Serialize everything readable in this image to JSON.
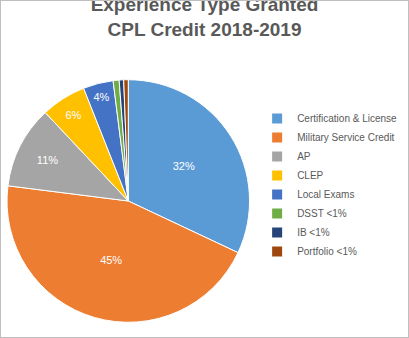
{
  "chart_data": {
    "type": "pie",
    "title": "Experience Type Granted\nCPL Credit 2018-2019",
    "categories": [
      "Certification & License",
      "Military Service Credit",
      "AP",
      "CLEP",
      "Local Exams",
      "DSST <1%",
      "IB <1%",
      "Portfolio <1%"
    ],
    "values": [
      32,
      45,
      11,
      6,
      4,
      0.8,
      0.6,
      0.6
    ],
    "value_labels": [
      "32%",
      "45%",
      "11%",
      "6%",
      "4%",
      null,
      null,
      null
    ],
    "colors": [
      "#5b9bd5",
      "#ed7d31",
      "#a5a5a5",
      "#ffc000",
      "#4472c4",
      "#70ad47",
      "#264478",
      "#9e480e"
    ],
    "data_labels": true,
    "legend": "right"
  }
}
